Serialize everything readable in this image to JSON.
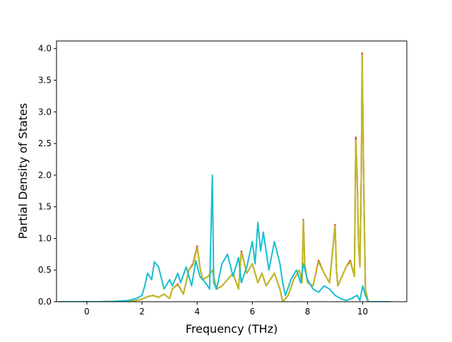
{
  "chart_data": {
    "type": "line",
    "title": "",
    "xlabel": "Frequency (THz)",
    "ylabel": "Partial Density of States",
    "xlim": [
      -1.1,
      11.6
    ],
    "ylim": [
      0.0,
      4.12
    ],
    "xticks": [
      0,
      2,
      4,
      6,
      8,
      10
    ],
    "yticks": [
      0.0,
      0.5,
      1.0,
      1.5,
      2.0,
      2.5,
      3.0,
      3.5,
      4.0
    ],
    "xtick_labels": [
      "0",
      "2",
      "4",
      "6",
      "8",
      "10"
    ],
    "ytick_labels": [
      "0.0",
      "0.5",
      "1.0",
      "1.5",
      "2.0",
      "2.5",
      "3.0",
      "3.5",
      "4.0"
    ],
    "grid": false,
    "legend": "none",
    "series": [
      {
        "color": "#d62728",
        "x": [
          -1.0,
          0.0,
          0.5,
          1.0,
          1.5,
          1.8,
          2.0,
          2.2,
          2.4,
          2.6,
          2.8,
          3.0,
          3.1,
          3.3,
          3.5,
          3.7,
          3.85,
          4.0,
          4.1,
          4.2,
          4.4,
          4.55,
          4.7,
          4.9,
          5.1,
          5.3,
          5.5,
          5.6,
          5.8,
          6.0,
          6.2,
          6.35,
          6.5,
          6.8,
          7.0,
          7.1,
          7.3,
          7.5,
          7.7,
          7.8,
          7.85,
          7.9,
          8.0,
          8.2,
          8.4,
          8.6,
          8.8,
          9.0,
          9.05,
          9.1,
          9.2,
          9.4,
          9.55,
          9.7,
          9.75,
          9.8,
          9.85,
          9.9,
          9.95,
          9.98,
          10.05,
          10.1,
          10.2,
          11.0
        ],
        "values": [
          0.0,
          0.0,
          0.0,
          0.005,
          0.01,
          0.02,
          0.04,
          0.08,
          0.1,
          0.07,
          0.12,
          0.05,
          0.2,
          0.28,
          0.12,
          0.5,
          0.6,
          0.88,
          0.55,
          0.35,
          0.4,
          0.5,
          0.2,
          0.25,
          0.35,
          0.45,
          0.2,
          0.8,
          0.45,
          0.6,
          0.3,
          0.45,
          0.25,
          0.45,
          0.2,
          0.0,
          0.1,
          0.35,
          0.5,
          0.3,
          1.3,
          0.6,
          0.3,
          0.25,
          0.65,
          0.45,
          0.3,
          1.22,
          0.5,
          0.25,
          0.35,
          0.55,
          0.65,
          0.4,
          2.6,
          2.0,
          0.9,
          0.55,
          2.0,
          3.93,
          1.5,
          0.2,
          0.0,
          0.0
        ]
      },
      {
        "color": "#bcbd22",
        "x": [
          -1.0,
          0.0,
          0.5,
          1.0,
          1.5,
          1.8,
          2.0,
          2.2,
          2.4,
          2.6,
          2.8,
          3.0,
          3.1,
          3.3,
          3.5,
          3.7,
          3.85,
          4.0,
          4.1,
          4.2,
          4.4,
          4.55,
          4.7,
          4.9,
          5.1,
          5.3,
          5.5,
          5.6,
          5.8,
          6.0,
          6.2,
          6.35,
          6.5,
          6.8,
          7.0,
          7.1,
          7.3,
          7.5,
          7.7,
          7.8,
          7.85,
          7.9,
          8.0,
          8.2,
          8.4,
          8.6,
          8.8,
          9.0,
          9.05,
          9.1,
          9.2,
          9.4,
          9.55,
          9.7,
          9.75,
          9.8,
          9.85,
          9.9,
          9.95,
          9.98,
          10.05,
          10.1,
          10.2,
          11.0
        ],
        "values": [
          0.0,
          0.0,
          0.0,
          0.005,
          0.01,
          0.02,
          0.04,
          0.08,
          0.1,
          0.07,
          0.12,
          0.05,
          0.2,
          0.27,
          0.12,
          0.5,
          0.58,
          0.86,
          0.55,
          0.35,
          0.4,
          0.5,
          0.2,
          0.25,
          0.35,
          0.45,
          0.2,
          0.78,
          0.45,
          0.6,
          0.3,
          0.45,
          0.25,
          0.45,
          0.2,
          0.0,
          0.1,
          0.35,
          0.5,
          0.3,
          1.28,
          0.6,
          0.3,
          0.25,
          0.63,
          0.45,
          0.3,
          1.2,
          0.5,
          0.25,
          0.35,
          0.55,
          0.63,
          0.4,
          2.55,
          2.0,
          0.9,
          0.55,
          2.0,
          3.9,
          1.5,
          0.2,
          0.0,
          0.0
        ]
      },
      {
        "color": "#17becf",
        "x": [
          -1.0,
          0.0,
          0.5,
          1.0,
          1.5,
          1.8,
          2.0,
          2.1,
          2.2,
          2.35,
          2.45,
          2.6,
          2.8,
          3.0,
          3.1,
          3.3,
          3.4,
          3.6,
          3.8,
          3.95,
          4.1,
          4.3,
          4.45,
          4.55,
          4.6,
          4.7,
          4.9,
          5.1,
          5.3,
          5.5,
          5.6,
          5.8,
          6.0,
          6.1,
          6.2,
          6.3,
          6.4,
          6.6,
          6.8,
          7.0,
          7.1,
          7.2,
          7.4,
          7.6,
          7.75,
          7.85,
          8.0,
          8.2,
          8.4,
          8.6,
          8.8,
          9.0,
          9.2,
          9.4,
          9.6,
          9.8,
          9.9,
          10.0,
          10.1,
          10.2,
          11.0
        ],
        "values": [
          0.0,
          0.0,
          0.0,
          0.005,
          0.02,
          0.05,
          0.1,
          0.25,
          0.45,
          0.35,
          0.63,
          0.55,
          0.2,
          0.35,
          0.25,
          0.45,
          0.3,
          0.55,
          0.25,
          0.65,
          0.4,
          0.3,
          0.2,
          2.0,
          0.3,
          0.2,
          0.6,
          0.75,
          0.4,
          0.7,
          0.3,
          0.55,
          0.95,
          0.6,
          1.25,
          0.8,
          1.1,
          0.5,
          0.95,
          0.6,
          0.3,
          0.1,
          0.35,
          0.5,
          0.3,
          0.6,
          0.35,
          0.2,
          0.15,
          0.25,
          0.2,
          0.1,
          0.05,
          0.02,
          0.05,
          0.1,
          0.02,
          0.25,
          0.1,
          0.0,
          0.0
        ]
      }
    ]
  }
}
